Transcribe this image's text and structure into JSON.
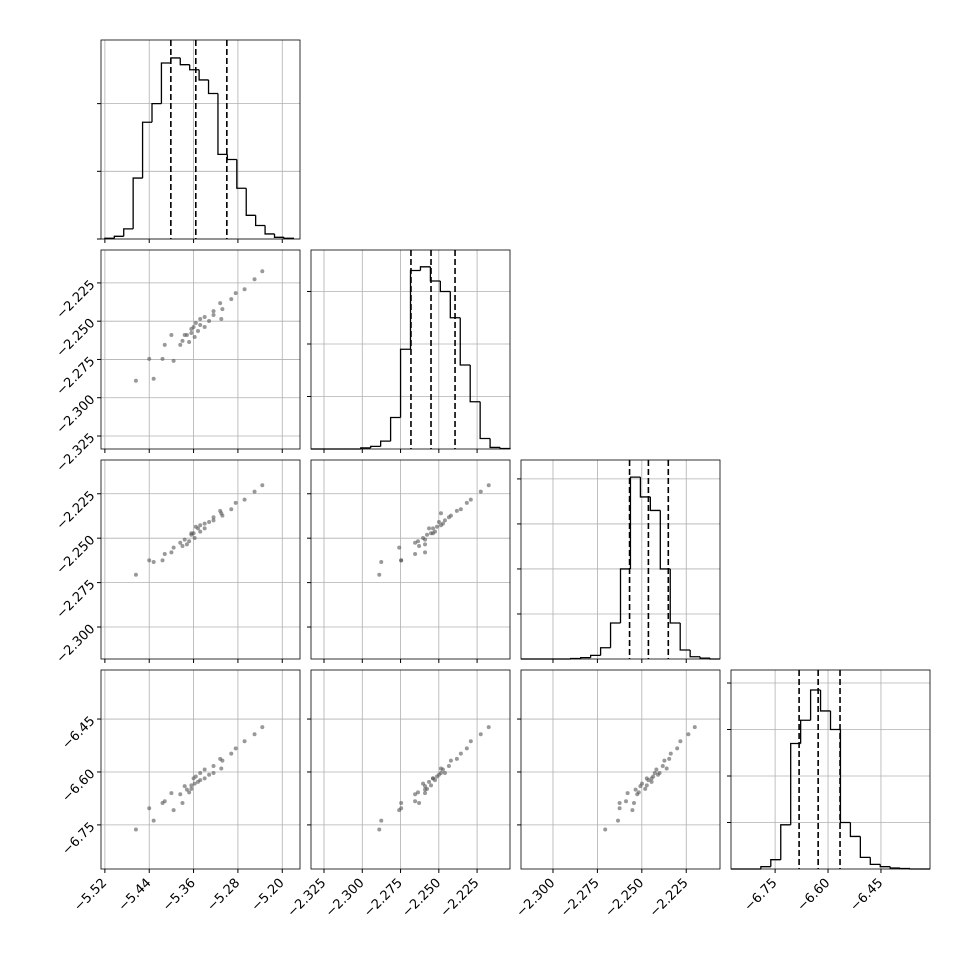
{
  "chart_data": {
    "type": "corner",
    "grid": true,
    "line_color": "#000000",
    "point_color": "#555555",
    "params": [
      {
        "xlim": [
          -5.527,
          -5.168
        ],
        "xticks": [
          {
            "value": -5.52,
            "label": "−5.52"
          },
          {
            "value": -5.44,
            "label": "−5.44"
          },
          {
            "value": -5.36,
            "label": "−5.36"
          },
          {
            "value": -5.28,
            "label": "−5.28"
          },
          {
            "value": -5.2,
            "label": "−5.20"
          }
        ],
        "bins": [
          -5.52,
          -5.503,
          -5.486,
          -5.469,
          -5.452,
          -5.435,
          -5.418,
          -5.401,
          -5.384,
          -5.367,
          -5.35,
          -5.333,
          -5.316,
          -5.299,
          -5.282,
          -5.265,
          -5.248,
          -5.231,
          -5.214,
          -5.197,
          -5.18
        ],
        "counts": [
          2,
          8,
          30,
          180,
          345,
          400,
          520,
          535,
          515,
          500,
          470,
          430,
          250,
          235,
          150,
          70,
          40,
          15,
          5,
          2
        ],
        "hist_ylim": [
          0,
          588
        ],
        "hist_yticks": [
          0,
          200,
          400
        ],
        "quantiles": [
          -5.401,
          -5.356,
          -5.3
        ]
      },
      {
        "xlim": [
          -2.3335,
          -2.2035
        ],
        "xticks": [
          {
            "value": -2.325,
            "label": "−2.325"
          },
          {
            "value": -2.3,
            "label": "−2.300"
          },
          {
            "value": -2.275,
            "label": "−2.275"
          },
          {
            "value": -2.25,
            "label": "−2.250"
          },
          {
            "value": -2.225,
            "label": "−2.225"
          }
        ],
        "bins": [
          -2.3335,
          -2.327,
          -2.3205,
          -2.314,
          -2.3075,
          -2.301,
          -2.2945,
          -2.288,
          -2.2815,
          -2.275,
          -2.2685,
          -2.262,
          -2.2555,
          -2.249,
          -2.2425,
          -2.236,
          -2.2295,
          -2.223,
          -2.2165,
          -2.21,
          -2.2035
        ],
        "counts": [
          0,
          0,
          0,
          0,
          0,
          2,
          5,
          15,
          60,
          190,
          340,
          347,
          320,
          300,
          250,
          160,
          90,
          20,
          3,
          1
        ],
        "hist_ylim": [
          0,
          379
        ],
        "hist_yticks": [
          100,
          200,
          300
        ],
        "quantiles": [
          -2.2682,
          -2.2551,
          -2.2394
        ]
      },
      {
        "xlim": [
          -2.318,
          -2.206
        ],
        "xticks": [
          {
            "value": -2.3,
            "label": "−2.300"
          },
          {
            "value": -2.275,
            "label": "−2.275"
          },
          {
            "value": -2.25,
            "label": "−2.250"
          },
          {
            "value": -2.225,
            "label": "−2.225"
          }
        ],
        "bins": [
          -2.318,
          -2.3124,
          -2.3068,
          -2.3012,
          -2.2956,
          -2.29,
          -2.2844,
          -2.2788,
          -2.2732,
          -2.2676,
          -2.262,
          -2.2564,
          -2.2508,
          -2.2452,
          -2.2396,
          -2.234,
          -2.2284,
          -2.2228,
          -2.2172,
          -2.2116,
          -2.206
        ],
        "counts": [
          0,
          0,
          0,
          0,
          0,
          1,
          3,
          8,
          25,
          80,
          200,
          404,
          360,
          330,
          200,
          80,
          20,
          5,
          2,
          0
        ],
        "hist_ylim": [
          0,
          442
        ],
        "hist_yticks": [
          100,
          200,
          300,
          400
        ],
        "quantiles": [
          -2.2569,
          -2.2463,
          -2.2351
        ]
      },
      {
        "xlim": [
          -6.875,
          -6.311
        ],
        "xticks": [
          {
            "value": -6.75,
            "label": "−6.75"
          },
          {
            "value": -6.6,
            "label": "−6.60"
          },
          {
            "value": -6.45,
            "label": "−6.45"
          }
        ],
        "bins": [
          -6.875,
          -6.8468,
          -6.8186,
          -6.7904,
          -6.7622,
          -6.734,
          -6.7058,
          -6.6776,
          -6.6494,
          -6.6212,
          -6.593,
          -6.5648,
          -6.5366,
          -6.5084,
          -6.4802,
          -6.452,
          -6.4238,
          -6.3956,
          -6.3674,
          -6.3392,
          -6.311
        ],
        "counts": [
          0,
          0,
          0,
          5,
          20,
          95,
          270,
          320,
          385,
          340,
          300,
          100,
          70,
          25,
          10,
          5,
          2,
          1,
          0,
          0
        ],
        "hist_ylim": [
          0,
          428
        ],
        "hist_yticks": [
          100,
          200,
          300,
          400
        ],
        "quantiles": [
          -6.682,
          -6.628,
          -6.566
        ]
      }
    ],
    "samples": [
      [
        -5.432,
        -2.2876,
        -2.2634,
        -6.738
      ],
      [
        -5.44,
        -2.2746,
        -2.2625,
        -6.703
      ],
      [
        -5.416,
        -2.2746,
        -2.2625,
        -6.688
      ],
      [
        -5.396,
        -2.2759,
        -2.2553,
        -6.708
      ],
      [
        -5.412,
        -2.2655,
        -2.2589,
        -6.683
      ],
      [
        -5.38,
        -2.2629,
        -2.2544,
        -6.688
      ],
      [
        -5.384,
        -2.2655,
        -2.2526,
        -6.663
      ],
      [
        -5.372,
        -2.259,
        -2.2535,
        -6.65
      ],
      [
        -5.368,
        -2.2636,
        -2.2517,
        -6.658
      ],
      [
        -5.376,
        -2.259,
        -2.2508,
        -6.64
      ],
      [
        -5.364,
        -2.2577,
        -2.2481,
        -6.648
      ],
      [
        -5.358,
        -2.2603,
        -2.2499,
        -6.633
      ],
      [
        -5.364,
        -2.2551,
        -2.2472,
        -6.638
      ],
      [
        -5.352,
        -2.2564,
        -2.2445,
        -6.628
      ],
      [
        -5.36,
        -2.2538,
        -2.2472,
        -6.618
      ],
      [
        -5.348,
        -2.2525,
        -2.2463,
        -6.623
      ],
      [
        -5.356,
        -2.2512,
        -2.2436,
        -6.613
      ],
      [
        -5.34,
        -2.2538,
        -2.2445,
        -6.618
      ],
      [
        -5.348,
        -2.2486,
        -2.2427,
        -6.603
      ],
      [
        -5.332,
        -2.2499,
        -2.2409,
        -6.608
      ],
      [
        -5.34,
        -2.2473,
        -2.2418,
        -6.593
      ],
      [
        -5.324,
        -2.246,
        -2.24,
        -6.603
      ],
      [
        -5.324,
        -2.2434,
        -2.2382,
        -6.583
      ],
      [
        -5.308,
        -2.2421,
        -2.2373,
        -6.568
      ],
      [
        -5.312,
        -2.2382,
        -2.2346,
        -6.563
      ],
      [
        -5.292,
        -2.2356,
        -2.2337,
        -6.548
      ],
      [
        -5.284,
        -2.2317,
        -2.2301,
        -6.533
      ],
      [
        -5.268,
        -2.2291,
        -2.2283,
        -6.513
      ],
      [
        -5.25,
        -2.2226,
        -2.2238,
        -6.493
      ],
      [
        -5.464,
        -2.2889,
        -2.2706,
        -6.763
      ],
      [
        -5.236,
        -2.2174,
        -2.2202,
        -6.473
      ],
      [
        -5.4,
        -2.259,
        -2.258,
        -6.66
      ],
      [
        -5.31,
        -2.2486,
        -2.236,
        -6.59
      ]
    ]
  }
}
